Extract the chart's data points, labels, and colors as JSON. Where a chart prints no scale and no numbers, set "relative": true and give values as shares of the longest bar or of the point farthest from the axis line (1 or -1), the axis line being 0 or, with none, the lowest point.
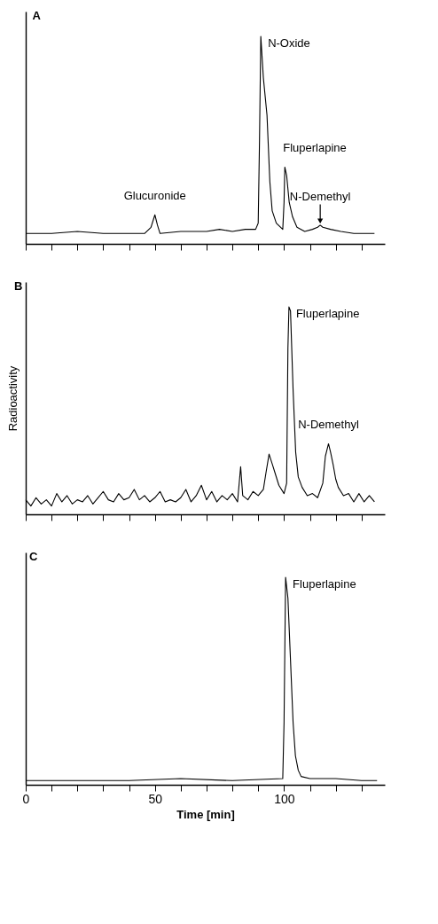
{
  "chart_data": [
    {
      "type": "line",
      "title": "A",
      "relative": true,
      "tick_labels": false,
      "color": "#000000",
      "xlim": [
        0,
        139
      ],
      "xticks": [
        {
          "value": 0,
          "label": null
        },
        {
          "value": 10,
          "label": null
        },
        {
          "value": 20,
          "label": null
        },
        {
          "value": 30,
          "label": null
        },
        {
          "value": 40,
          "label": null
        },
        {
          "value": 50,
          "label": null
        },
        {
          "value": 60,
          "label": null
        },
        {
          "value": 70,
          "label": null
        },
        {
          "value": 80,
          "label": null
        },
        {
          "value": 90,
          "label": null
        },
        {
          "value": 100,
          "label": null
        },
        {
          "value": 110,
          "label": null
        },
        {
          "value": 120,
          "label": null
        },
        {
          "value": 130,
          "label": null
        }
      ],
      "x": [
        0,
        10,
        20,
        30,
        40,
        46,
        48.5,
        50,
        51,
        52,
        60,
        70,
        75,
        80,
        85,
        89,
        90,
        90.5,
        91,
        92,
        93.4,
        94.5,
        95.4,
        97,
        99.5,
        100,
        100.3,
        101,
        102,
        103.3,
        105,
        108,
        111,
        113,
        114,
        115,
        118,
        122,
        127,
        131,
        135
      ],
      "values": [
        0.05,
        0.05,
        0.06,
        0.05,
        0.05,
        0.05,
        0.08,
        0.14,
        0.09,
        0.05,
        0.06,
        0.06,
        0.07,
        0.06,
        0.07,
        0.07,
        0.1,
        0.5,
        1,
        0.8,
        0.62,
        0.3,
        0.16,
        0.1,
        0.07,
        0.2,
        0.37,
        0.33,
        0.2,
        0.13,
        0.08,
        0.06,
        0.07,
        0.08,
        0.09,
        0.08,
        0.07,
        0.06,
        0.05,
        0.05,
        0.05
      ],
      "annotations": [
        {
          "text": "Glucuronide",
          "x": 50,
          "y": 0.14
        },
        {
          "text": "N-Oxide",
          "x": 91,
          "y": 1
        },
        {
          "text": "Fluperlapine",
          "x": 100.3,
          "y": 0.37
        },
        {
          "text": "N-Demethyl",
          "x": 114,
          "y": 0.09
        }
      ]
    },
    {
      "type": "line",
      "title": "B",
      "ylabel": "Radioactivity",
      "relative": true,
      "tick_labels": false,
      "color": "#000000",
      "xlim": [
        0,
        139
      ],
      "xticks": [
        {
          "value": 0,
          "label": null
        },
        {
          "value": 10,
          "label": null
        },
        {
          "value": 20,
          "label": null
        },
        {
          "value": 30,
          "label": null
        },
        {
          "value": 40,
          "label": null
        },
        {
          "value": 50,
          "label": null
        },
        {
          "value": 60,
          "label": null
        },
        {
          "value": 70,
          "label": null
        },
        {
          "value": 80,
          "label": null
        },
        {
          "value": 90,
          "label": null
        },
        {
          "value": 100,
          "label": null
        },
        {
          "value": 110,
          "label": null
        },
        {
          "value": 120,
          "label": null
        },
        {
          "value": 130,
          "label": null
        }
      ],
      "x": [
        0,
        2,
        4,
        6,
        8,
        10,
        12,
        14,
        16,
        18,
        20,
        22,
        24,
        26,
        28,
        30,
        32,
        34,
        36,
        38,
        40,
        42,
        44,
        46,
        48,
        50,
        52,
        54,
        56,
        58,
        60,
        62,
        64,
        66,
        68,
        70,
        72,
        74,
        76,
        78,
        80,
        82,
        83.2,
        84,
        86,
        88,
        90,
        92,
        93,
        94.2,
        95.5,
        96.5,
        98,
        100,
        101,
        101.5,
        101.9,
        102.5,
        103.5,
        104.5,
        105.5,
        107,
        109,
        111,
        113,
        115,
        116,
        117.2,
        118,
        119,
        120,
        121,
        123,
        125,
        127,
        129,
        131,
        133,
        135
      ],
      "values": [
        0.07,
        0.04,
        0.08,
        0.05,
        0.07,
        0.04,
        0.1,
        0.06,
        0.09,
        0.05,
        0.07,
        0.06,
        0.09,
        0.05,
        0.08,
        0.11,
        0.07,
        0.06,
        0.1,
        0.07,
        0.08,
        0.12,
        0.07,
        0.09,
        0.06,
        0.08,
        0.11,
        0.06,
        0.07,
        0.06,
        0.08,
        0.12,
        0.06,
        0.09,
        0.14,
        0.07,
        0.11,
        0.06,
        0.09,
        0.07,
        0.1,
        0.06,
        0.23,
        0.09,
        0.07,
        0.11,
        0.09,
        0.12,
        0.2,
        0.29,
        0.24,
        0.2,
        0.14,
        0.1,
        0.15,
        0.8,
        1,
        0.98,
        0.6,
        0.3,
        0.18,
        0.13,
        0.09,
        0.1,
        0.08,
        0.15,
        0.28,
        0.34,
        0.3,
        0.24,
        0.17,
        0.13,
        0.09,
        0.1,
        0.06,
        0.1,
        0.06,
        0.09,
        0.06
      ],
      "annotations": [
        {
          "text": "Fluperlapine",
          "x": 101.9,
          "y": 1
        },
        {
          "text": "N-Demethyl",
          "x": 117.2,
          "y": 0.34
        }
      ]
    },
    {
      "type": "line",
      "title": "C",
      "xlabel": "Time [min]",
      "relative": true,
      "tick_labels": "x",
      "color": "#000000",
      "xlim": [
        0,
        139
      ],
      "xticks": [
        0,
        {
          "value": 10,
          "label": null
        },
        {
          "value": 20,
          "label": null
        },
        {
          "value": 30,
          "label": null
        },
        {
          "value": 40,
          "label": null
        },
        50,
        {
          "value": 60,
          "label": null
        },
        {
          "value": 70,
          "label": null
        },
        {
          "value": 80,
          "label": null
        },
        {
          "value": 90,
          "label": null
        },
        100,
        {
          "value": 110,
          "label": null
        },
        {
          "value": 120,
          "label": null
        },
        {
          "value": 130,
          "label": null
        }
      ],
      "x": [
        0,
        20,
        40,
        60,
        80,
        99.5,
        100,
        100.6,
        101.5,
        102.5,
        103.5,
        104.4,
        105.5,
        106.6,
        110,
        120,
        130,
        136
      ],
      "values": [
        0.02,
        0.02,
        0.02,
        0.03,
        0.02,
        0.03,
        0.3,
        1,
        0.9,
        0.6,
        0.3,
        0.14,
        0.07,
        0.04,
        0.03,
        0.03,
        0.02,
        0.02
      ],
      "annotations": [
        {
          "text": "Fluperlapine",
          "x": 100.6,
          "y": 1
        }
      ]
    }
  ]
}
